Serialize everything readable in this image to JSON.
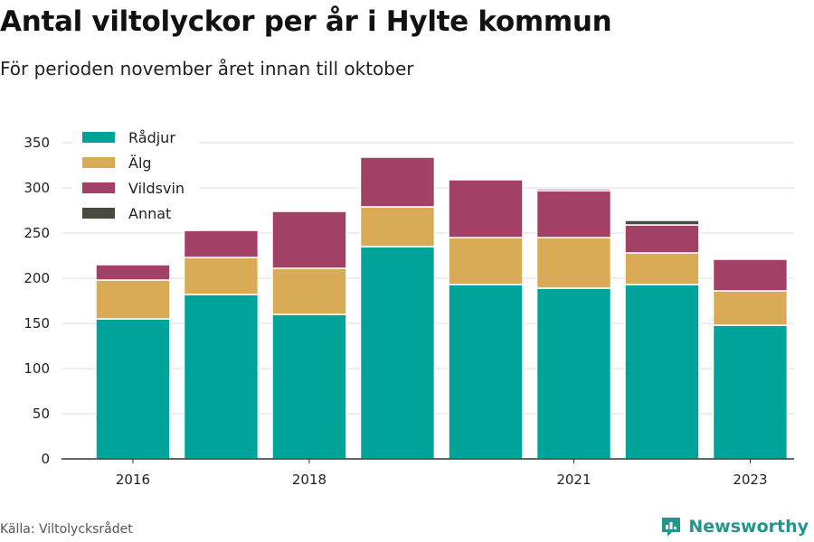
{
  "title": "Antal viltolyckor per år i Hylte kommun",
  "subtitle": "För perioden november året innan till oktober",
  "source": "Källa: Viltolycksrådet",
  "brand": "Newsworthy",
  "colors": {
    "Rådjur": "#00a39a",
    "Älg": "#d9ab56",
    "Vildsvin": "#a34066",
    "Annat": "#4a4a3e",
    "brand": "#23958a"
  },
  "chart_data": {
    "type": "bar",
    "stacked": true,
    "categories": [
      "2016",
      "2017",
      "2018",
      "2019",
      "2020",
      "2021",
      "2022",
      "2023"
    ],
    "x_tick_labels": [
      "2016",
      "",
      "2018",
      "",
      "",
      "2021",
      "",
      "2023"
    ],
    "series": [
      {
        "name": "Rådjur",
        "values": [
          155,
          182,
          160,
          235,
          193,
          189,
          193,
          148
        ]
      },
      {
        "name": "Älg",
        "values": [
          43,
          41,
          51,
          44,
          52,
          56,
          35,
          38
        ]
      },
      {
        "name": "Vildsvin",
        "values": [
          17,
          30,
          63,
          55,
          64,
          52,
          31,
          35
        ]
      },
      {
        "name": "Annat",
        "values": [
          0,
          0,
          0,
          0,
          0,
          2,
          5,
          0
        ]
      }
    ],
    "y_ticks": [
      0,
      50,
      100,
      150,
      200,
      250,
      300,
      350
    ],
    "ylim": [
      0,
      350
    ],
    "grid": true,
    "legend_position": "top-left"
  }
}
